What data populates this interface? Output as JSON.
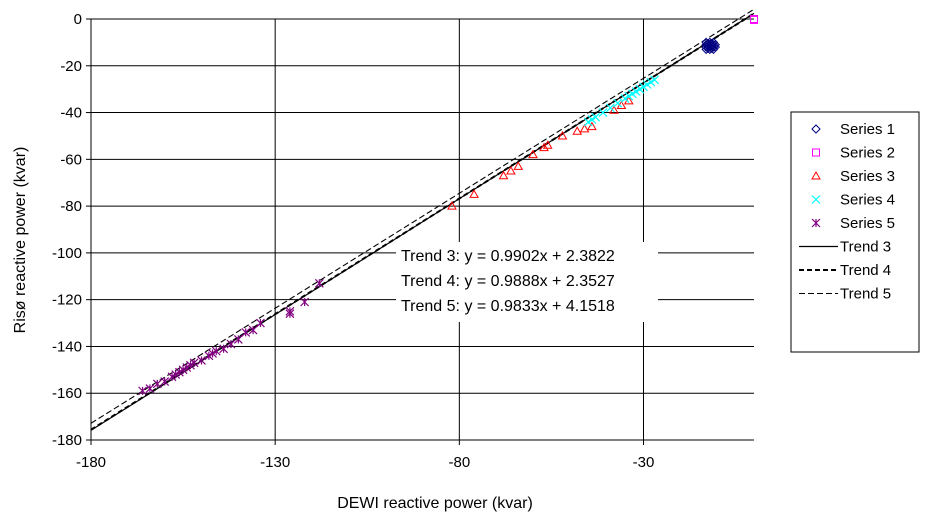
{
  "chart_data": {
    "type": "scatter",
    "xlabel": "DEWI reactive power (kvar)",
    "ylabel": "Risø reactive power (kvar)",
    "xlim": [
      -180,
      0
    ],
    "ylim": [
      -180,
      0
    ],
    "x_ticks": [
      -180,
      -130,
      -80,
      -30
    ],
    "y_ticks": [
      0,
      -20,
      -40,
      -60,
      -80,
      -100,
      -120,
      -140,
      -160,
      -180
    ],
    "grid": true,
    "legend_position": "right",
    "series": [
      {
        "name": "Series 1",
        "marker": "diamond",
        "color": "#000080",
        "points": [
          [
            -13,
            -10
          ],
          [
            -13,
            -11
          ],
          [
            -13,
            -12
          ],
          [
            -13,
            -13
          ],
          [
            -12.5,
            -10.5
          ],
          [
            -12.5,
            -11.5
          ],
          [
            -12.5,
            -12.5
          ],
          [
            -12,
            -10
          ],
          [
            -12,
            -11
          ],
          [
            -12,
            -12
          ],
          [
            -12,
            -13
          ],
          [
            -11.5,
            -10.5
          ],
          [
            -11.5,
            -11.5
          ],
          [
            -11.5,
            -12.5
          ],
          [
            -11,
            -10
          ],
          [
            -11,
            -11
          ],
          [
            -11,
            -12
          ],
          [
            -11,
            -13
          ],
          [
            -10.5,
            -11
          ],
          [
            -10.5,
            -12
          ]
        ]
      },
      {
        "name": "Series 2",
        "marker": "square",
        "color": "#FF00FF",
        "points": [
          [
            0,
            0
          ],
          [
            0,
            -0.4
          ]
        ]
      },
      {
        "name": "Series 3",
        "marker": "triangle",
        "color": "#FF0000",
        "points": [
          [
            -82,
            -80
          ],
          [
            -76,
            -75
          ],
          [
            -68,
            -67
          ],
          [
            -66,
            -65
          ],
          [
            -64,
            -63
          ],
          [
            -60,
            -58
          ],
          [
            -57,
            -55
          ],
          [
            -56,
            -54
          ],
          [
            -52,
            -50
          ],
          [
            -48,
            -48
          ],
          [
            -46,
            -47
          ],
          [
            -44,
            -46
          ],
          [
            -38,
            -39
          ],
          [
            -36,
            -37
          ],
          [
            -34,
            -35
          ]
        ]
      },
      {
        "name": "Series 4",
        "marker": "x",
        "color": "#00FFFF",
        "points": [
          [
            -45,
            -44
          ],
          [
            -44,
            -43
          ],
          [
            -43,
            -42
          ],
          [
            -41,
            -40
          ],
          [
            -39,
            -38
          ],
          [
            -37,
            -36
          ],
          [
            -35,
            -34
          ],
          [
            -34,
            -33
          ],
          [
            -33,
            -32
          ],
          [
            -32,
            -31
          ],
          [
            -31,
            -30
          ],
          [
            -30,
            -29
          ],
          [
            -29,
            -28
          ],
          [
            -28,
            -27
          ],
          [
            -27,
            -26
          ]
        ]
      },
      {
        "name": "Series 5",
        "marker": "star",
        "color": "#800080",
        "points": [
          [
            -166,
            -159
          ],
          [
            -164,
            -158
          ],
          [
            -162,
            -156
          ],
          [
            -160,
            -155
          ],
          [
            -158,
            -153
          ],
          [
            -157,
            -152
          ],
          [
            -156,
            -151
          ],
          [
            -155,
            -150
          ],
          [
            -154,
            -149
          ],
          [
            -153,
            -148
          ],
          [
            -152,
            -147
          ],
          [
            -150,
            -146
          ],
          [
            -148,
            -144
          ],
          [
            -147,
            -143
          ],
          [
            -146,
            -142
          ],
          [
            -144,
            -141
          ],
          [
            -142,
            -139
          ],
          [
            -140,
            -137
          ],
          [
            -138,
            -134
          ],
          [
            -136,
            -133
          ],
          [
            -134,
            -130
          ],
          [
            -126,
            -125
          ],
          [
            -126,
            -126
          ],
          [
            -122,
            -121
          ],
          [
            -118,
            -113
          ]
        ]
      }
    ],
    "trends": [
      {
        "name": "Trend 3",
        "slope": 0.9902,
        "intercept": 2.3822,
        "style": "solid"
      },
      {
        "name": "Trend 4",
        "slope": 0.9888,
        "intercept": 2.3527,
        "style": "dashed-bold"
      },
      {
        "name": "Trend 5",
        "slope": 0.9833,
        "intercept": 4.1518,
        "style": "dashed"
      }
    ],
    "annotations": [
      "Trend 3: y = 0.9902x + 2.3822",
      "Trend 4: y = 0.9888x + 2.3527",
      "Trend 5: y = 0.9833x + 4.1518"
    ]
  }
}
